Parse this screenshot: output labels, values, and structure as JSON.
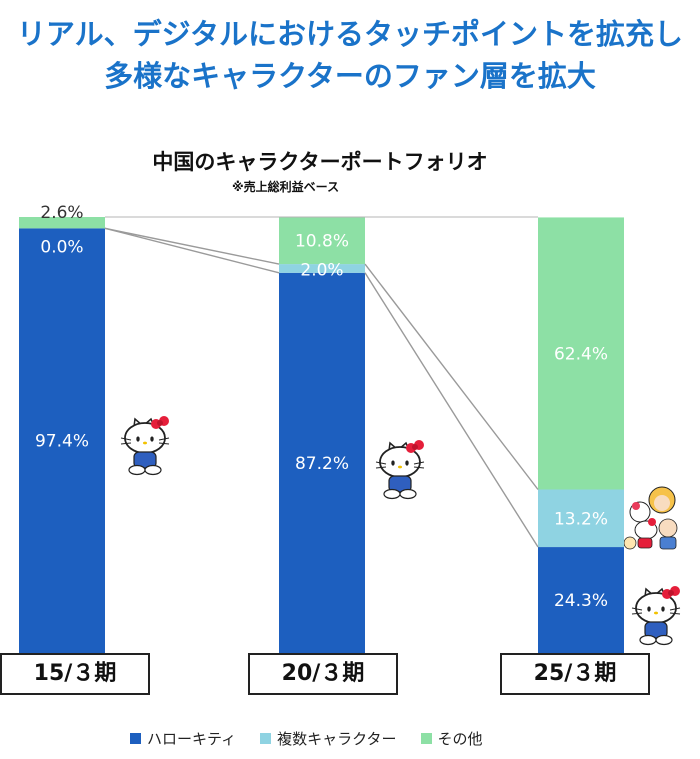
{
  "headline": {
    "line1": "リアル、デジタルにおけるタッチポイントを拡充し",
    "line2": "多様なキャラクターのファン層を拡大"
  },
  "chart_data": {
    "type": "bar",
    "stacked": true,
    "percent": true,
    "title": "中国のキャラクターポートフォリオ",
    "subtitle": "※売上総利益ベース",
    "categories": [
      "15/３期",
      "20/３期",
      "25/３期"
    ],
    "series": [
      {
        "name": "ハローキティ",
        "color": "#1d5fbf",
        "values": [
          97.4,
          87.2,
          24.3
        ]
      },
      {
        "name": "複数キャラクター",
        "color": "#8fd3e2",
        "values": [
          0.0,
          2.0,
          13.2
        ]
      },
      {
        "name": "その他",
        "color": "#8de0a5",
        "values": [
          2.6,
          10.8,
          62.4
        ]
      }
    ],
    "value_labels": [
      [
        "97.4%",
        "87.2%",
        "24.3%"
      ],
      [
        "0.0%",
        "2.0%",
        "13.2%"
      ],
      [
        "2.6%",
        "10.8%",
        "62.4%"
      ]
    ],
    "ylim": [
      0,
      100
    ],
    "legend_position": "bottom"
  },
  "illustrations": {
    "kitty_icon": "hello-kitty-icon",
    "characters_icon": "sanrio-characters-icon"
  }
}
